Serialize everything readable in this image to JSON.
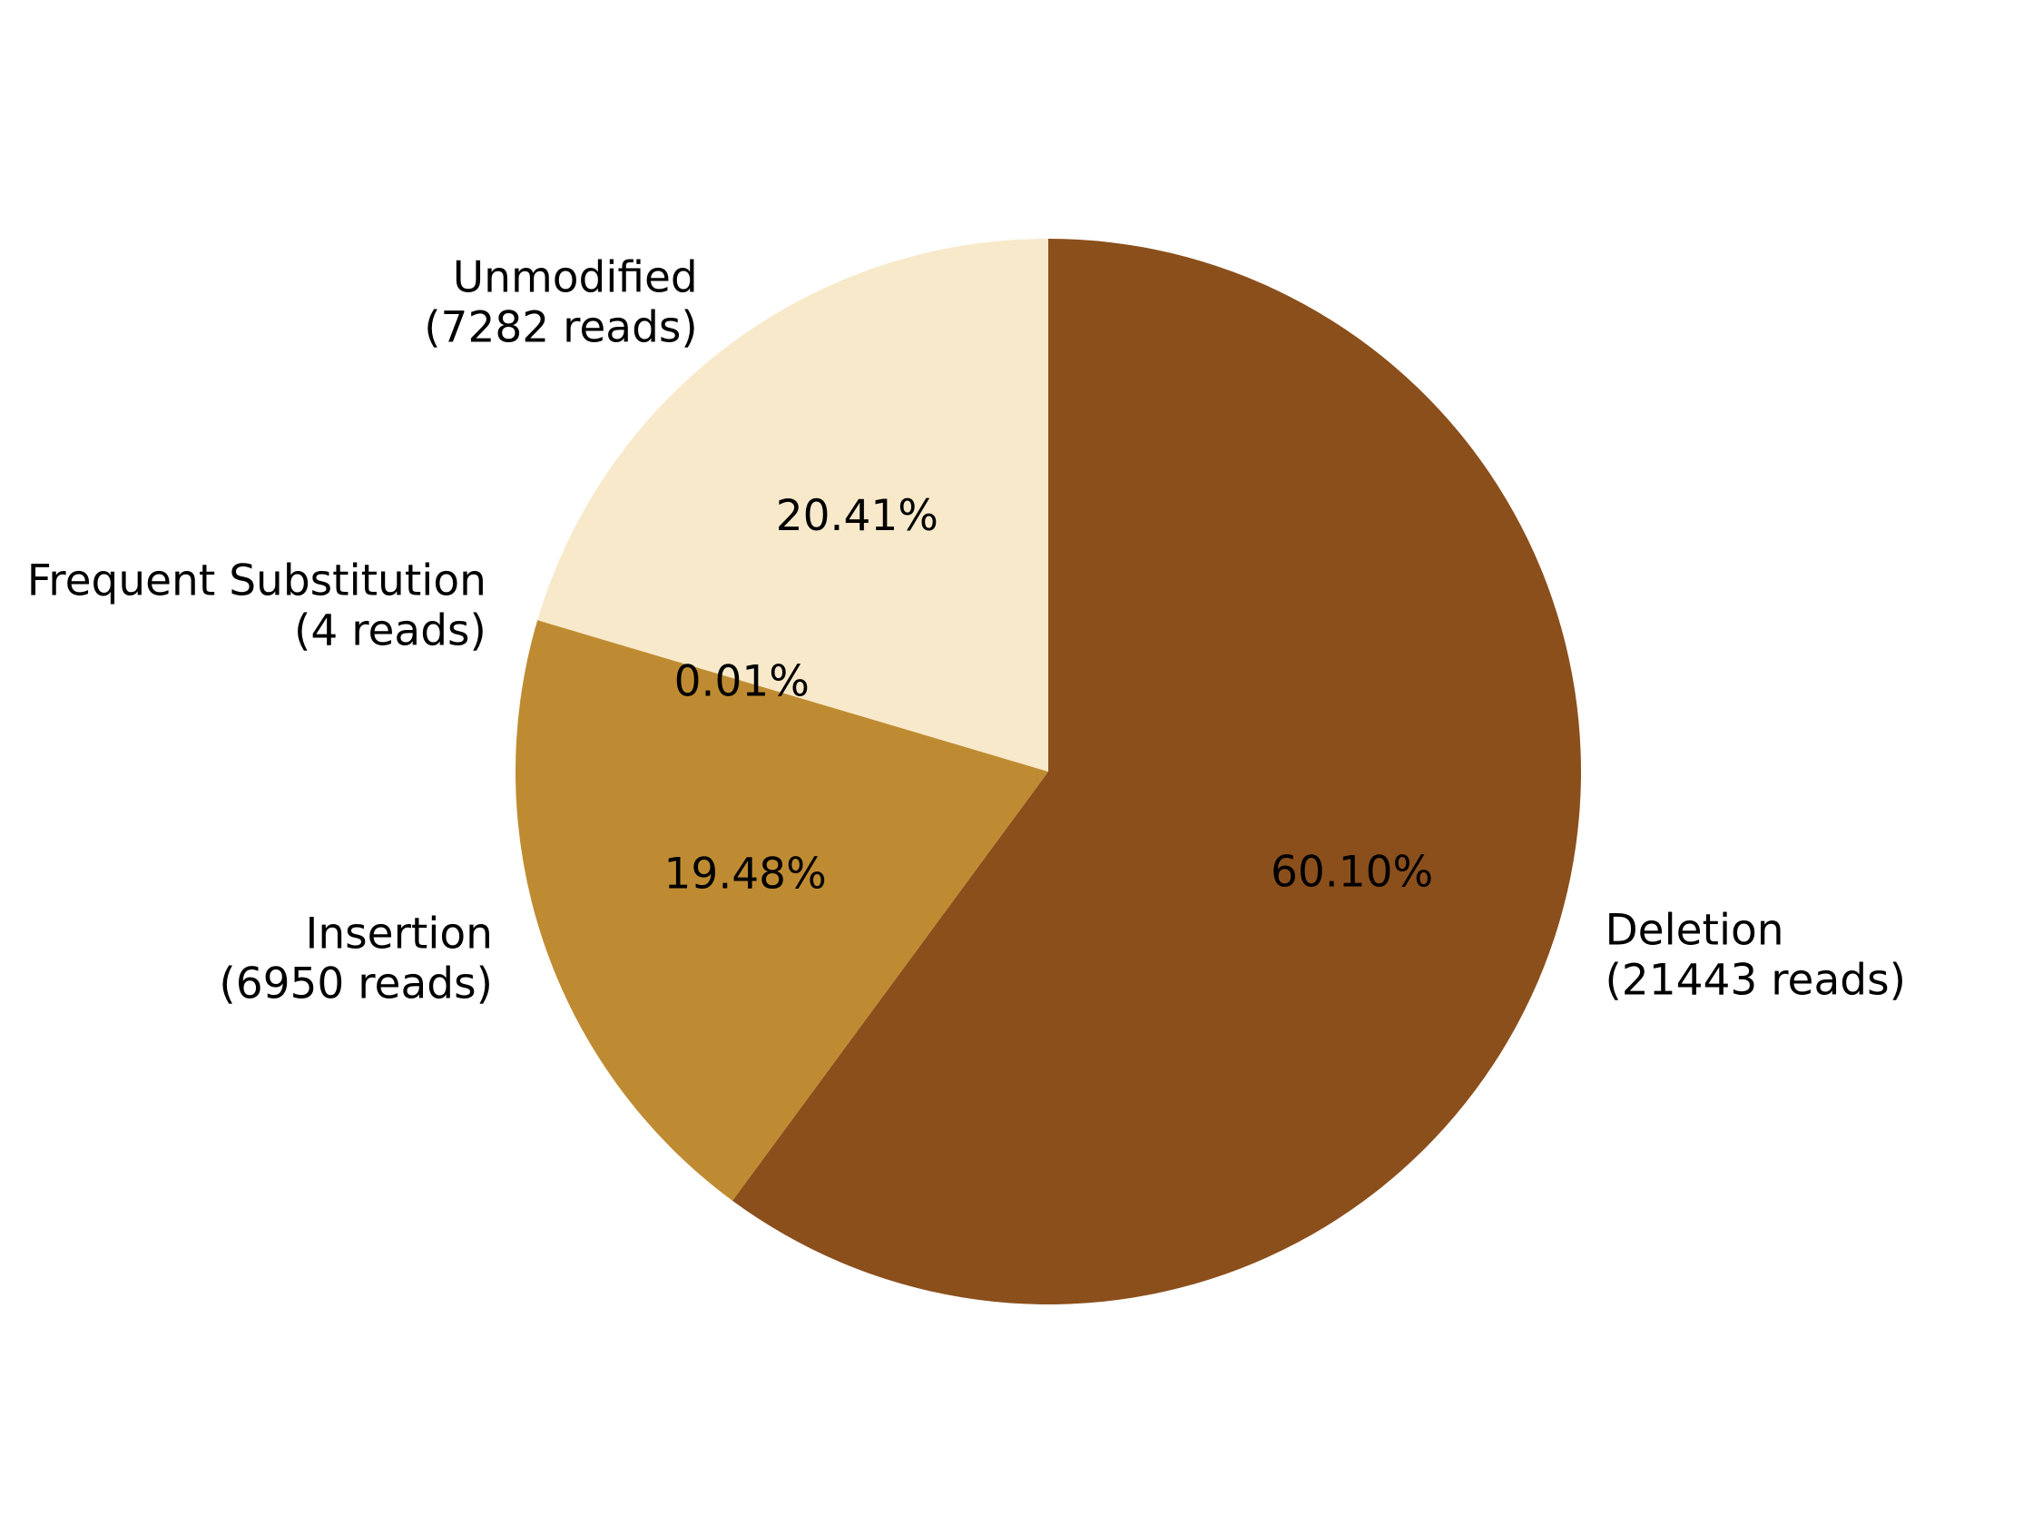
{
  "chart_data": {
    "type": "pie",
    "title": "",
    "start_angle_deg": 90,
    "direction": "clockwise",
    "slices": [
      {
        "name": "Deletion",
        "reads_label": "(21443 reads)",
        "reads": 21443,
        "percent": 60.1,
        "pct_label": "60.10%",
        "color": "#8B4F1C"
      },
      {
        "name": "Insertion",
        "reads_label": "(6950 reads)",
        "reads": 6950,
        "percent": 19.48,
        "pct_label": "19.48%",
        "color": "#BF8B32"
      },
      {
        "name": "Frequent Substitution",
        "reads_label": "(4 reads)",
        "reads": 4,
        "percent": 0.01,
        "pct_label": "0.01%",
        "color": "#D9A441"
      },
      {
        "name": "Unmodified",
        "reads_label": "(7282 reads)",
        "reads": 7282,
        "percent": 20.41,
        "pct_label": "20.41%",
        "color": "#F8E9CB"
      }
    ]
  }
}
